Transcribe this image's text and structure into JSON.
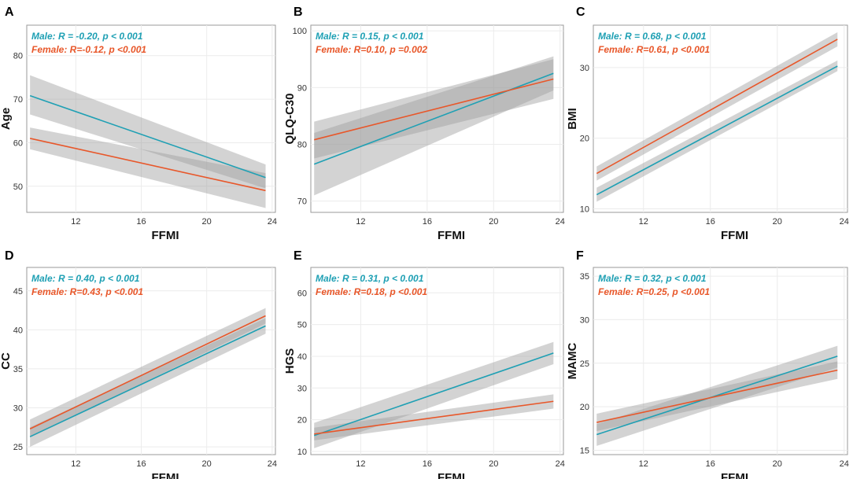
{
  "colors": {
    "male": "#1fa0b4",
    "female": "#e8572a",
    "band": "#9e9e9e"
  },
  "chart_data": [
    {
      "type": "line",
      "panel": "A",
      "xlabel": "FFMI",
      "ylabel": "Age",
      "xlim": [
        9,
        24.2
      ],
      "xticks": [
        12,
        16,
        20,
        24
      ],
      "ylim": [
        44,
        87
      ],
      "yticks": [
        50,
        60,
        70,
        80
      ],
      "series": [
        {
          "name": "Male",
          "stat": "Male: R = -0.20, p < 0.001",
          "x": [
            9.2,
            23.6
          ],
          "y": [
            70.8,
            52.0
          ],
          "ci_low": [
            66.5,
            49.5
          ],
          "ci_high": [
            75.5,
            55.0
          ]
        },
        {
          "name": "Female",
          "stat": "Female: R=-0.12, p <0.001",
          "x": [
            9.2,
            23.6
          ],
          "y": [
            61.0,
            49.0
          ],
          "ci_low": [
            58.5,
            45.0
          ],
          "ci_high": [
            63.5,
            53.0
          ]
        }
      ]
    },
    {
      "type": "line",
      "panel": "B",
      "xlabel": "FFMI",
      "ylabel": "QLQ-C30",
      "xlim": [
        9,
        24.2
      ],
      "xticks": [
        12,
        16,
        20,
        24
      ],
      "ylim": [
        68,
        101
      ],
      "yticks": [
        70,
        80,
        90,
        100
      ],
      "series": [
        {
          "name": "Male",
          "stat": "Male: R = 0.15, p < 0.001",
          "x": [
            9.2,
            23.6
          ],
          "y": [
            76.5,
            92.5
          ],
          "ci_low": [
            71.0,
            89.5
          ],
          "ci_high": [
            82.0,
            95.5
          ]
        },
        {
          "name": "Female",
          "stat": "Female: R=0.10, p =0.002",
          "x": [
            9.2,
            23.6
          ],
          "y": [
            80.8,
            91.5
          ],
          "ci_low": [
            77.5,
            88.0
          ],
          "ci_high": [
            84.0,
            95.0
          ]
        }
      ]
    },
    {
      "type": "line",
      "panel": "C",
      "xlabel": "FFMI",
      "ylabel": "BMI",
      "xlim": [
        9,
        24.2
      ],
      "xticks": [
        12,
        16,
        20,
        24
      ],
      "ylim": [
        9.5,
        36
      ],
      "yticks": [
        10,
        20,
        30
      ],
      "series": [
        {
          "name": "Male",
          "stat": "Male: R = 0.68, p < 0.001",
          "x": [
            9.2,
            23.6
          ],
          "y": [
            12.0,
            30.2
          ],
          "ci_low": [
            11.0,
            29.5
          ],
          "ci_high": [
            13.0,
            31.0
          ]
        },
        {
          "name": "Female",
          "stat": "Female: R=0.61, p <0.001",
          "x": [
            9.2,
            23.6
          ],
          "y": [
            15.0,
            34.0
          ],
          "ci_low": [
            14.0,
            33.0
          ],
          "ci_high": [
            16.0,
            35.0
          ]
        }
      ]
    },
    {
      "type": "line",
      "panel": "D",
      "xlabel": "FFMI",
      "ylabel": "CC",
      "xlim": [
        9,
        24.2
      ],
      "xticks": [
        12,
        16,
        20,
        24
      ],
      "ylim": [
        24,
        48
      ],
      "yticks": [
        25,
        30,
        35,
        40,
        45
      ],
      "series": [
        {
          "name": "Male",
          "stat": "Male: R = 0.40, p < 0.001",
          "x": [
            9.2,
            23.6
          ],
          "y": [
            26.3,
            40.5
          ],
          "ci_low": [
            25.0,
            39.5
          ],
          "ci_high": [
            27.5,
            41.5
          ]
        },
        {
          "name": "Female",
          "stat": "Female: R=0.43, p <0.001",
          "x": [
            9.2,
            23.6
          ],
          "y": [
            27.3,
            41.8
          ],
          "ci_low": [
            26.2,
            40.8
          ],
          "ci_high": [
            28.5,
            42.8
          ]
        }
      ]
    },
    {
      "type": "line",
      "panel": "E",
      "xlabel": "FFMI",
      "ylabel": "HGS",
      "xlim": [
        9,
        24.2
      ],
      "xticks": [
        12,
        16,
        20,
        24
      ],
      "ylim": [
        9,
        68
      ],
      "yticks": [
        10,
        20,
        30,
        40,
        50,
        60
      ],
      "series": [
        {
          "name": "Male",
          "stat": "Male: R = 0.31, p < 0.001",
          "x": [
            9.2,
            23.6
          ],
          "y": [
            15.0,
            41.0
          ],
          "ci_low": [
            11.0,
            37.5
          ],
          "ci_high": [
            19.0,
            44.5
          ]
        },
        {
          "name": "Female",
          "stat": "Female: R=0.18, p <0.001",
          "x": [
            9.2,
            23.6
          ],
          "y": [
            15.5,
            25.8
          ],
          "ci_low": [
            13.5,
            23.5
          ],
          "ci_high": [
            17.5,
            28.0
          ]
        }
      ]
    },
    {
      "type": "line",
      "panel": "F",
      "xlabel": "FFMI",
      "ylabel": "MAMC",
      "xlim": [
        9,
        24.2
      ],
      "xticks": [
        12,
        16,
        20,
        24
      ],
      "ylim": [
        14.5,
        36
      ],
      "yticks": [
        15,
        20,
        25,
        30,
        35
      ],
      "series": [
        {
          "name": "Male",
          "stat": "Male: R = 0.32, p < 0.001",
          "x": [
            9.2,
            23.6
          ],
          "y": [
            16.8,
            25.8
          ],
          "ci_low": [
            15.5,
            24.5
          ],
          "ci_high": [
            18.0,
            27.0
          ]
        },
        {
          "name": "Female",
          "stat": "Female: R=0.25, p <0.001",
          "x": [
            9.2,
            23.6
          ],
          "y": [
            18.2,
            24.2
          ],
          "ci_low": [
            17.2,
            23.2
          ],
          "ci_high": [
            19.2,
            25.2
          ]
        }
      ]
    }
  ]
}
